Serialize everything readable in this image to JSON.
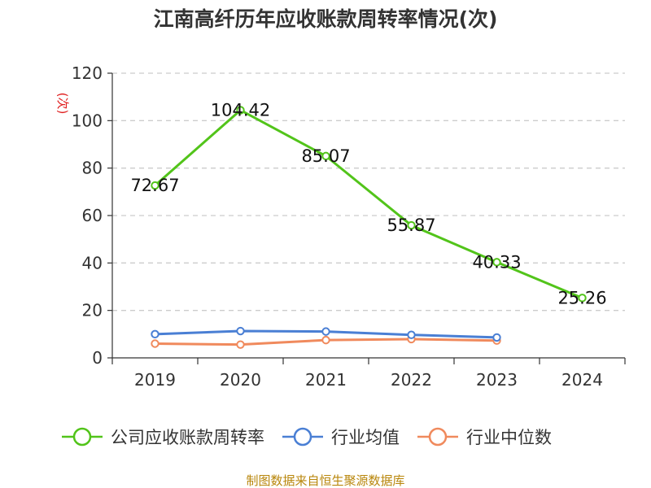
{
  "chart_data": {
    "type": "line",
    "title": "江南高纤历年应收账款周转率情况(次)",
    "ylabel": "(次)",
    "categories": [
      "2019",
      "2020",
      "2021",
      "2022",
      "2023",
      "2024"
    ],
    "ylim": [
      0,
      120
    ],
    "yticks": [
      0,
      20,
      40,
      60,
      80,
      100,
      120
    ],
    "grid": true,
    "legend_position": "bottom",
    "series": [
      {
        "name": "公司应收账款周转率",
        "color": "#52c41a",
        "values": [
          72.67,
          104.42,
          85.07,
          55.87,
          40.33,
          25.26
        ],
        "labels": [
          "72.67",
          "104.42",
          "85.07",
          "55.87",
          "40.33",
          "25.26"
        ]
      },
      {
        "name": "行业均值",
        "color": "#4a7fd4",
        "values": [
          10.0,
          11.3,
          11.1,
          9.7,
          8.6,
          null
        ]
      },
      {
        "name": "行业中位数",
        "color": "#f08a5d",
        "values": [
          6.0,
          5.6,
          7.5,
          7.9,
          7.3,
          null
        ]
      }
    ]
  },
  "source": "制图数据来自恒生聚源数据库"
}
